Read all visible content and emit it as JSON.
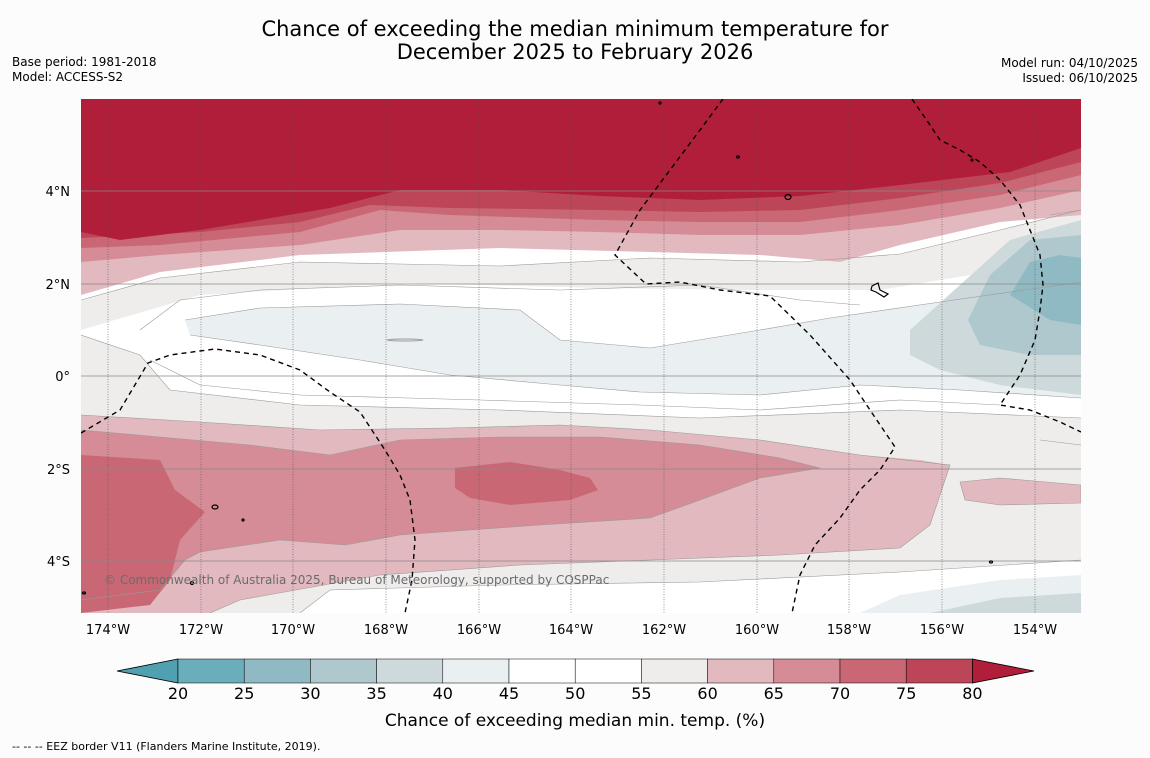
{
  "title": {
    "line1": "Chance of exceeding the median minimum temperature for",
    "line2": "December 2025 to February 2026"
  },
  "meta_left": {
    "base_period": "Base period: 1981-2018",
    "model": "Model: ACCESS-S2"
  },
  "meta_right": {
    "model_run": "Model run: 04/10/2025",
    "issued": "Issued: 06/10/2025"
  },
  "map": {
    "lon_ticks": [
      "174°W",
      "172°W",
      "170°W",
      "168°W",
      "166°W",
      "164°W",
      "162°W",
      "160°W",
      "158°W",
      "156°W",
      "154°W"
    ],
    "lat_ticks": [
      "4°N",
      "2°N",
      "0°",
      "2°S",
      "4°S"
    ],
    "copyright": "© Commonwealth of Australia 2025, Bureau of Meteorology, supported by COSPPac"
  },
  "colorbar": {
    "ticks": [
      "20",
      "25",
      "30",
      "35",
      "40",
      "45",
      "50",
      "55",
      "60",
      "65",
      "70",
      "75",
      "80"
    ],
    "colors": [
      "#4fa0b0",
      "#6aaebb",
      "#8fbac4",
      "#afc8cd",
      "#cdd9da",
      "#eaf0f1",
      "#ffffff",
      "#ffffff",
      "#efedec",
      "#e2b9bf",
      "#d58c96",
      "#c96874",
      "#bd4558",
      "#b11e3a"
    ],
    "label": "Chance of exceeding median min. temp. (%)"
  },
  "legend": {
    "eez": "--  --  -- EEZ border V11 (Flanders Marine Institute, 2019)."
  }
}
